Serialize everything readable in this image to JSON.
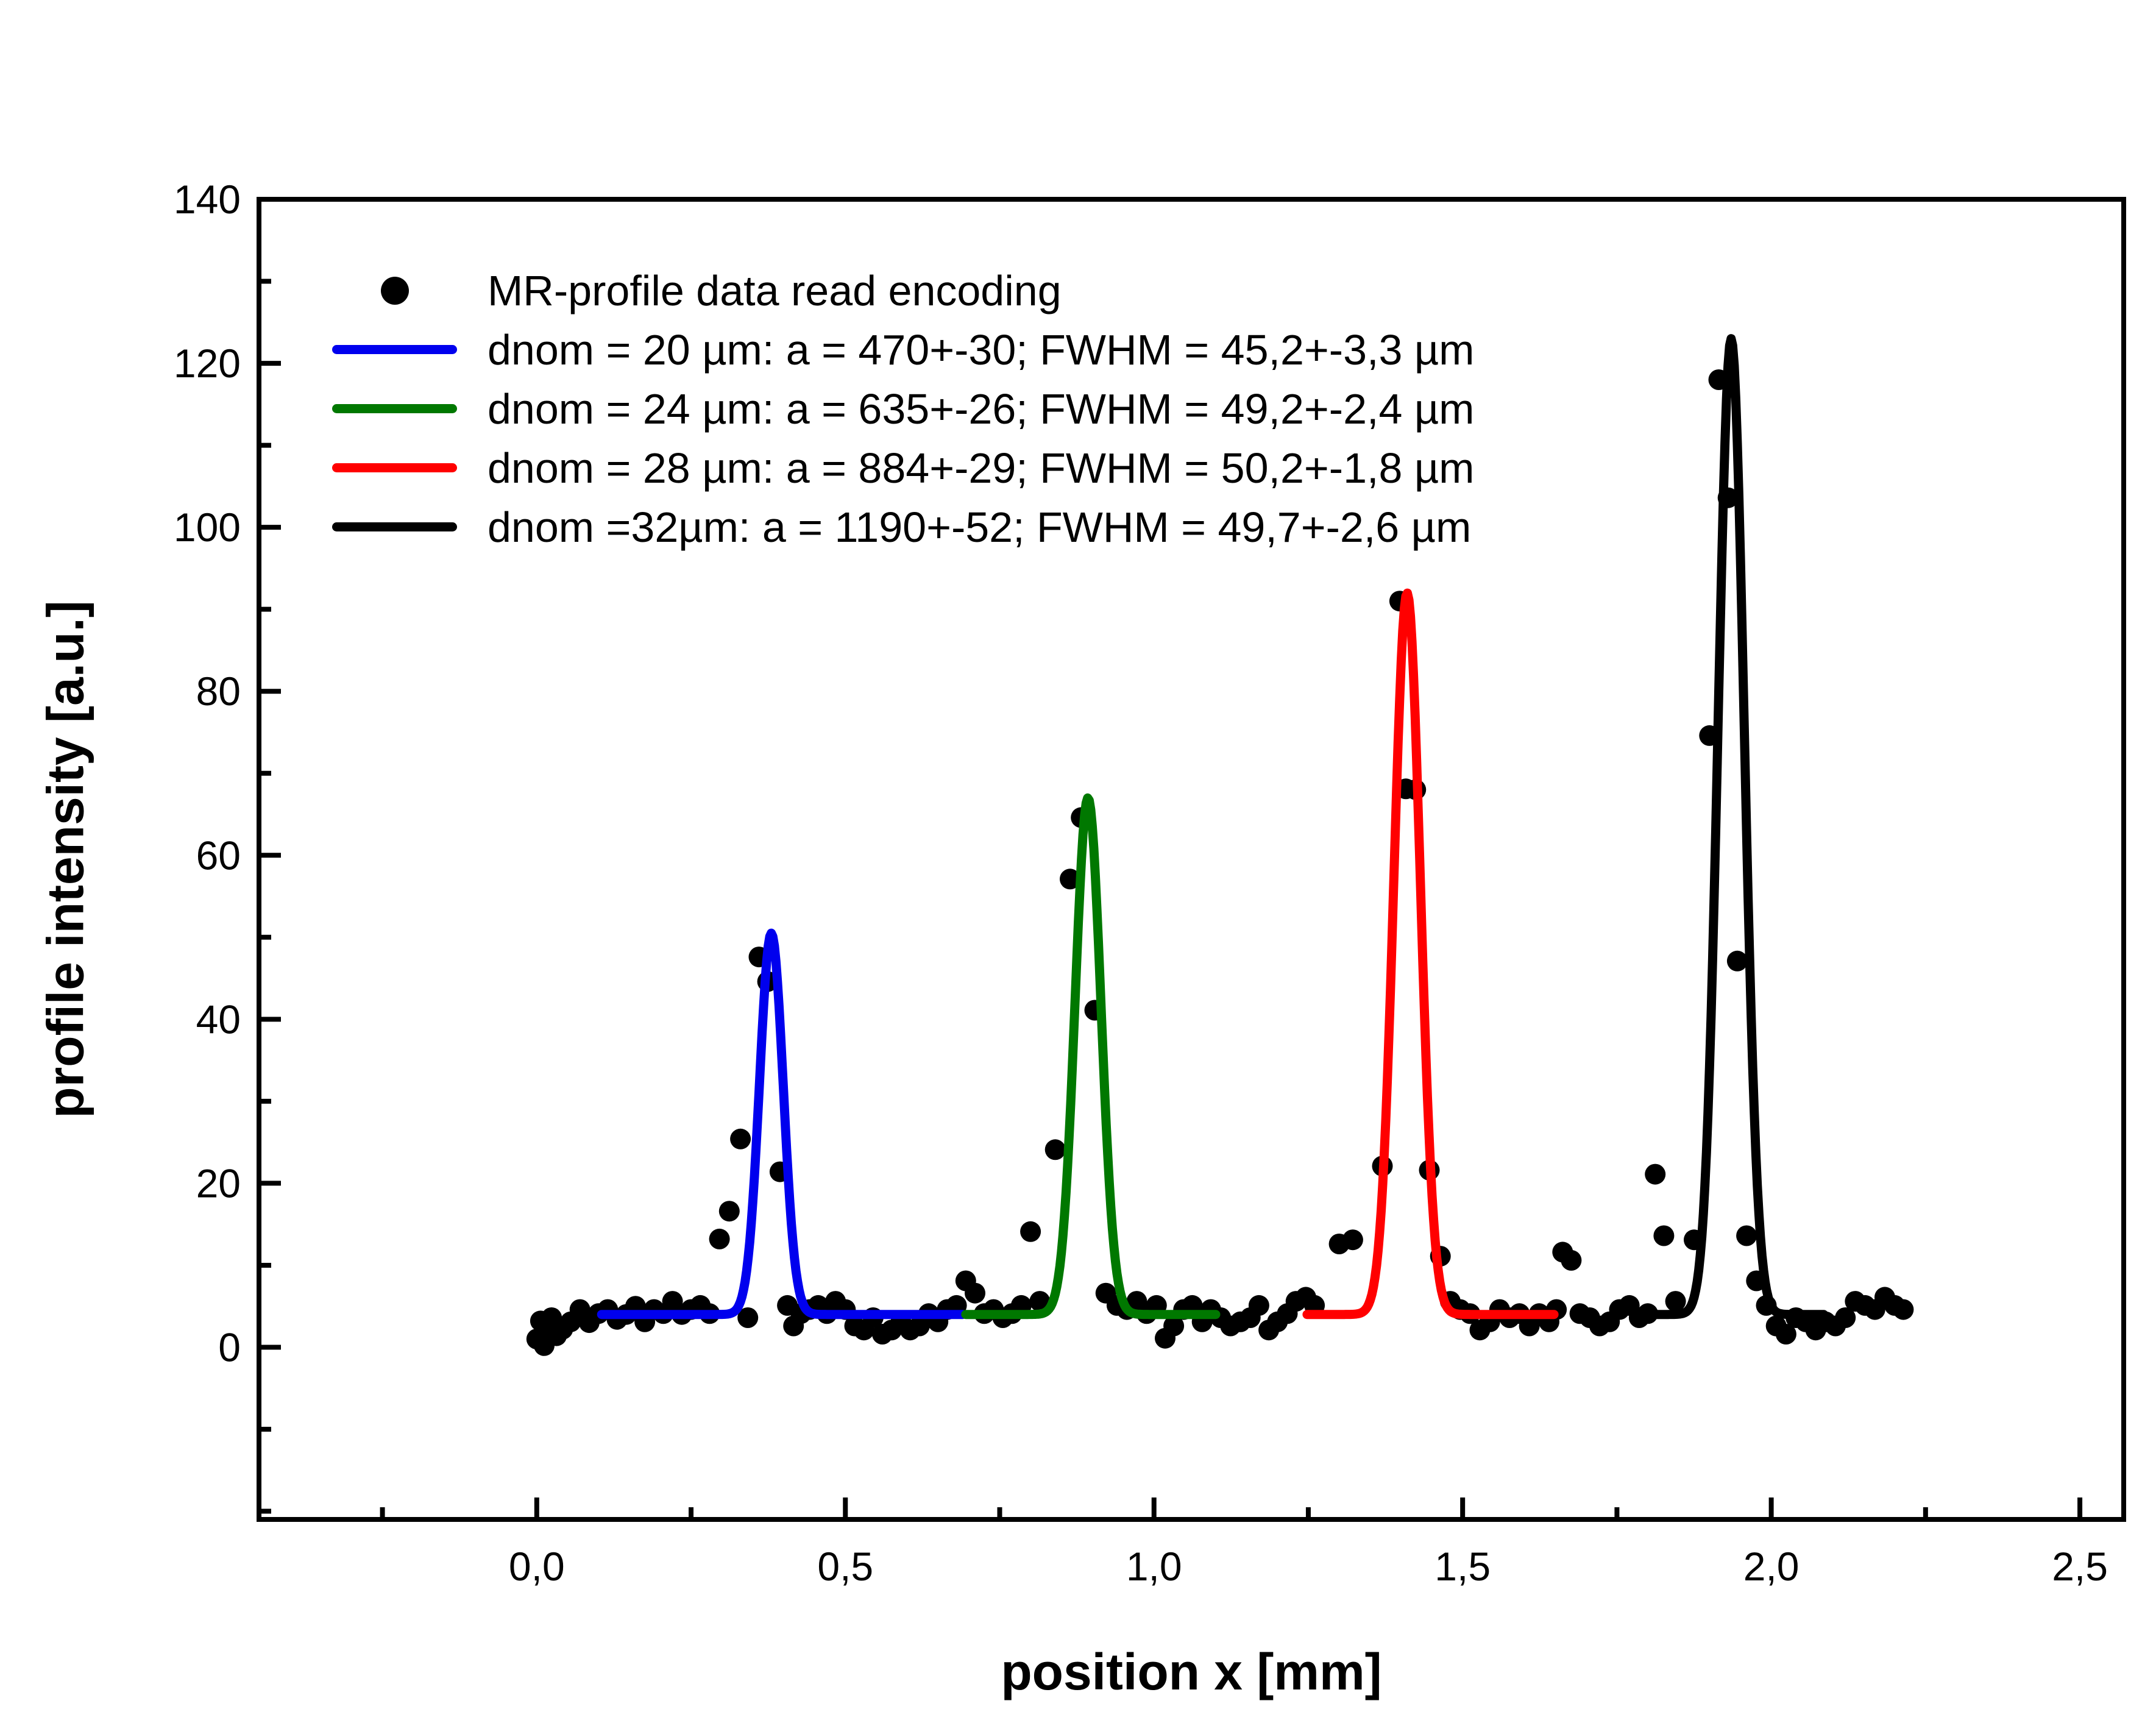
{
  "chart_data": {
    "type": "scatter",
    "title": "",
    "xlabel": "position x [mm]",
    "ylabel": "profile intensity [a.u.]",
    "xlim": [
      -0.45,
      2.571
    ],
    "ylim": [
      -21,
      140
    ],
    "xticks": [
      0.0,
      0.5,
      1.0,
      1.5,
      2.0,
      2.5
    ],
    "xtick_labels": [
      "0,0",
      "0,5",
      "1,0",
      "1,5",
      "2,0",
      "2,5"
    ],
    "xminor_step": 0.25,
    "yticks": [
      0,
      20,
      40,
      60,
      80,
      100,
      120,
      140
    ],
    "ytick_labels": [
      "0",
      "20",
      "40",
      "60",
      "80",
      "100",
      "120",
      "140"
    ],
    "yminor_step": 10,
    "grid": false,
    "legend_position": "top-left-inside",
    "legend": [
      {
        "marker": "dot",
        "color": "#000000",
        "label": "MR-profile data read encoding"
      },
      {
        "marker": "line",
        "color": "#0000ee",
        "label": "dnom = 20 µm: a = 470+-30; FWHM = 45,2+-3,3 µm"
      },
      {
        "marker": "line",
        "color": "#007800",
        "label": "dnom = 24 µm: a = 635+-26; FWHM = 49,2+-2,4 µm"
      },
      {
        "marker": "line",
        "color": "#ff0000",
        "label": "dnom = 28 µm: a = 884+-29; FWHM = 50,2+-1,8 µm"
      },
      {
        "marker": "line",
        "color": "#000000",
        "label": "dnom =32µm: a = 1190+-52; FWHM = 49,7+-2,6 µm"
      }
    ],
    "scatter": {
      "name": "MR-profile data read encoding",
      "color": "#000000",
      "marker_radius_px": 17,
      "points": [
        [
          0.0,
          1.0
        ],
        [
          0.006,
          3.2
        ],
        [
          0.012,
          0.2
        ],
        [
          0.018,
          2.1
        ],
        [
          0.024,
          3.6
        ],
        [
          0.032,
          1.4
        ],
        [
          0.042,
          2.2
        ],
        [
          0.055,
          3.1
        ],
        [
          0.07,
          4.6
        ],
        [
          0.085,
          3.0
        ],
        [
          0.1,
          4.1
        ],
        [
          0.115,
          4.6
        ],
        [
          0.13,
          3.4
        ],
        [
          0.145,
          4.0
        ],
        [
          0.16,
          5.0
        ],
        [
          0.175,
          3.1
        ],
        [
          0.19,
          4.6
        ],
        [
          0.205,
          4.1
        ],
        [
          0.22,
          5.6
        ],
        [
          0.235,
          4.0
        ],
        [
          0.25,
          4.6
        ],
        [
          0.265,
          5.1
        ],
        [
          0.28,
          4.1
        ],
        [
          0.296,
          13.2
        ],
        [
          0.312,
          16.6
        ],
        [
          0.33,
          25.4
        ],
        [
          0.342,
          3.6
        ],
        [
          0.36,
          47.6
        ],
        [
          0.374,
          44.6
        ],
        [
          0.394,
          21.4
        ],
        [
          0.406,
          5.1
        ],
        [
          0.416,
          2.6
        ],
        [
          0.428,
          4.1
        ],
        [
          0.442,
          4.6
        ],
        [
          0.456,
          5.1
        ],
        [
          0.47,
          4.1
        ],
        [
          0.484,
          5.6
        ],
        [
          0.5,
          4.6
        ],
        [
          0.515,
          2.6
        ],
        [
          0.53,
          2.1
        ],
        [
          0.545,
          3.6
        ],
        [
          0.56,
          1.6
        ],
        [
          0.575,
          2.1
        ],
        [
          0.59,
          3.1
        ],
        [
          0.605,
          2.1
        ],
        [
          0.62,
          2.6
        ],
        [
          0.635,
          4.1
        ],
        [
          0.65,
          3.1
        ],
        [
          0.665,
          4.6
        ],
        [
          0.68,
          5.1
        ],
        [
          0.695,
          8.1
        ],
        [
          0.71,
          6.6
        ],
        [
          0.725,
          4.1
        ],
        [
          0.74,
          4.6
        ],
        [
          0.755,
          3.6
        ],
        [
          0.77,
          4.1
        ],
        [
          0.785,
          5.1
        ],
        [
          0.8,
          14.1
        ],
        [
          0.815,
          5.6
        ],
        [
          0.84,
          24.1
        ],
        [
          0.864,
          57.1
        ],
        [
          0.882,
          64.6
        ],
        [
          0.904,
          41.1
        ],
        [
          0.922,
          6.6
        ],
        [
          0.94,
          5.1
        ],
        [
          0.956,
          4.6
        ],
        [
          0.972,
          5.6
        ],
        [
          0.988,
          4.1
        ],
        [
          1.004,
          5.1
        ],
        [
          1.018,
          1.1
        ],
        [
          1.032,
          2.6
        ],
        [
          1.048,
          4.6
        ],
        [
          1.062,
          5.1
        ],
        [
          1.078,
          3.1
        ],
        [
          1.092,
          4.6
        ],
        [
          1.108,
          3.6
        ],
        [
          1.124,
          2.6
        ],
        [
          1.14,
          3.1
        ],
        [
          1.156,
          3.6
        ],
        [
          1.17,
          5.1
        ],
        [
          1.186,
          2.1
        ],
        [
          1.2,
          3.1
        ],
        [
          1.216,
          4.1
        ],
        [
          1.23,
          5.6
        ],
        [
          1.246,
          6.1
        ],
        [
          1.26,
          5.1
        ],
        [
          1.3,
          12.6
        ],
        [
          1.322,
          13.1
        ],
        [
          1.37,
          22.1
        ],
        [
          1.398,
          91.0
        ],
        [
          1.408,
          68.1
        ],
        [
          1.424,
          68.0
        ],
        [
          1.446,
          21.6
        ],
        [
          1.464,
          11.1
        ],
        [
          1.48,
          5.6
        ],
        [
          1.496,
          4.6
        ],
        [
          1.512,
          4.1
        ],
        [
          1.528,
          2.1
        ],
        [
          1.544,
          3.1
        ],
        [
          1.56,
          4.6
        ],
        [
          1.576,
          3.6
        ],
        [
          1.592,
          4.1
        ],
        [
          1.608,
          2.6
        ],
        [
          1.624,
          4.1
        ],
        [
          1.64,
          3.1
        ],
        [
          1.652,
          4.6
        ],
        [
          1.662,
          11.6
        ],
        [
          1.676,
          10.6
        ],
        [
          1.69,
          4.1
        ],
        [
          1.706,
          3.6
        ],
        [
          1.722,
          2.6
        ],
        [
          1.738,
          3.1
        ],
        [
          1.754,
          4.6
        ],
        [
          1.77,
          5.1
        ],
        [
          1.786,
          3.6
        ],
        [
          1.8,
          4.1
        ],
        [
          1.812,
          21.1
        ],
        [
          1.826,
          13.6
        ],
        [
          1.845,
          5.6
        ],
        [
          1.875,
          13.1
        ],
        [
          1.9,
          74.6
        ],
        [
          1.915,
          118.0
        ],
        [
          1.93,
          103.6
        ],
        [
          1.945,
          47.1
        ],
        [
          1.96,
          13.6
        ],
        [
          1.976,
          8.1
        ],
        [
          1.992,
          5.1
        ],
        [
          2.008,
          2.6
        ],
        [
          2.024,
          1.6
        ],
        [
          2.04,
          3.6
        ],
        [
          2.056,
          3.1
        ],
        [
          2.072,
          2.1
        ],
        [
          2.088,
          3.1
        ],
        [
          2.104,
          2.6
        ],
        [
          2.12,
          3.6
        ],
        [
          2.136,
          5.6
        ],
        [
          2.152,
          5.1
        ],
        [
          2.168,
          4.6
        ],
        [
          2.184,
          6.1
        ],
        [
          2.2,
          5.1
        ],
        [
          2.214,
          4.6
        ]
      ]
    },
    "fits": [
      {
        "name": "dnom-20um",
        "color": "#0000ee",
        "center": 0.38,
        "amplitude": 46.5,
        "fwhm_mm": 0.0452,
        "baseline": 4.0,
        "x_range": [
          0.105,
          0.69
        ],
        "a_fit": "470+-30",
        "fwhm_fit_um": "45,2+-3,3"
      },
      {
        "name": "dnom-24um",
        "color": "#007800",
        "center": 0.893,
        "amplitude": 63.0,
        "fwhm_mm": 0.0492,
        "baseline": 4.0,
        "x_range": [
          0.695,
          1.1
        ],
        "a_fit": "635+-26",
        "fwhm_fit_um": "49,2+-2,4"
      },
      {
        "name": "dnom-28um",
        "color": "#ff0000",
        "center": 1.41,
        "amplitude": 88.0,
        "fwhm_mm": 0.0502,
        "baseline": 4.0,
        "x_range": [
          1.248,
          1.65
        ],
        "a_fit": "884+-29",
        "fwhm_fit_um": "50,2+-1,8"
      },
      {
        "name": "dnom-32um",
        "color": "#000000",
        "center": 1.935,
        "amplitude": 119.0,
        "fwhm_mm": 0.0497,
        "baseline": 4.0,
        "x_range": [
          1.8,
          2.085
        ],
        "a_fit": "1190+-52",
        "fwhm_fit_um": "49,7+-2,6"
      }
    ]
  }
}
